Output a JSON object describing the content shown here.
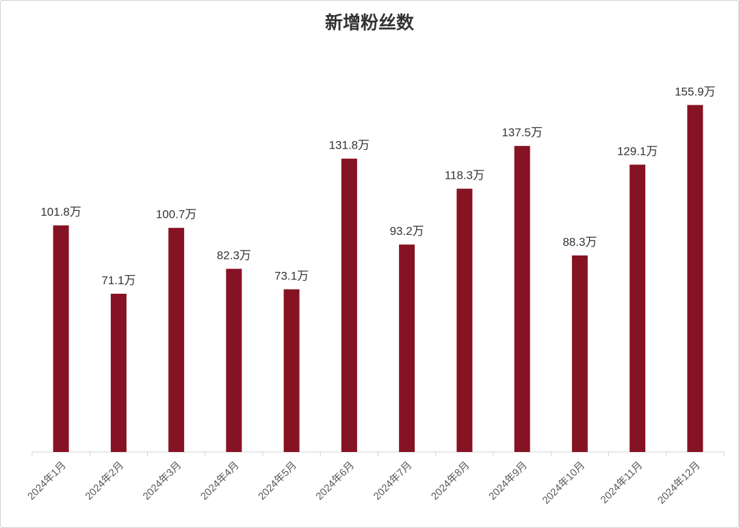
{
  "chart_data": {
    "type": "bar",
    "title": "新增粉丝数",
    "categories": [
      "2024年1月",
      "2024年2月",
      "2024年3月",
      "2024年4月",
      "2024年5月",
      "2024年6月",
      "2024年7月",
      "2024年8月",
      "2024年9月",
      "2024年10月",
      "2024年11月",
      "2024年12月"
    ],
    "values": [
      101.8,
      71.1,
      100.7,
      82.3,
      73.1,
      131.8,
      93.2,
      118.3,
      137.5,
      88.3,
      129.1,
      155.9
    ],
    "value_labels": [
      "101.8万",
      "71.1万",
      "100.7万",
      "82.3万",
      "73.1万",
      "131.8万",
      "93.2万",
      "118.3万",
      "137.5万",
      "88.3万",
      "129.1万",
      "155.9万"
    ],
    "unit": "万",
    "xlabel": "",
    "ylabel": "",
    "ylim": [
      0,
      156
    ],
    "grid": false,
    "legend": "none",
    "colors": {
      "bar": "#861323",
      "axis": "#d0d0d0",
      "text": "#333333"
    }
  }
}
